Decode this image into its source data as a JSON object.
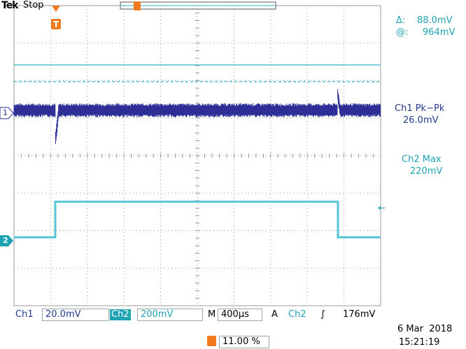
{
  "header": {
    "brand": "Tek",
    "status": "Stop"
  },
  "cursor": {
    "delta_label": "Δ:",
    "delta": "88.0mV",
    "at_label": "@:",
    "at": "964mV"
  },
  "measurements": [
    {
      "label": "Ch1 Pk−Pk",
      "value": "26.0mV"
    },
    {
      "label": "Ch2 Max",
      "value": "220mV"
    }
  ],
  "markers": {
    "ch1": "1",
    "ch2": "2",
    "trigger": "T"
  },
  "status_bar": {
    "ch1_label": "Ch1",
    "ch1_scale": "20.0mV",
    "ch2_label": "Ch2",
    "ch2_scale": "200mV",
    "time_label": "M",
    "time_scale": "400µs",
    "trigger_mode": "A",
    "trigger_source": "Ch2",
    "trigger_slope": "∫",
    "trigger_level": "176mV"
  },
  "date": "6 Mar  2018",
  "time": "15:21:19",
  "trigger_position": "11.00 %"
}
